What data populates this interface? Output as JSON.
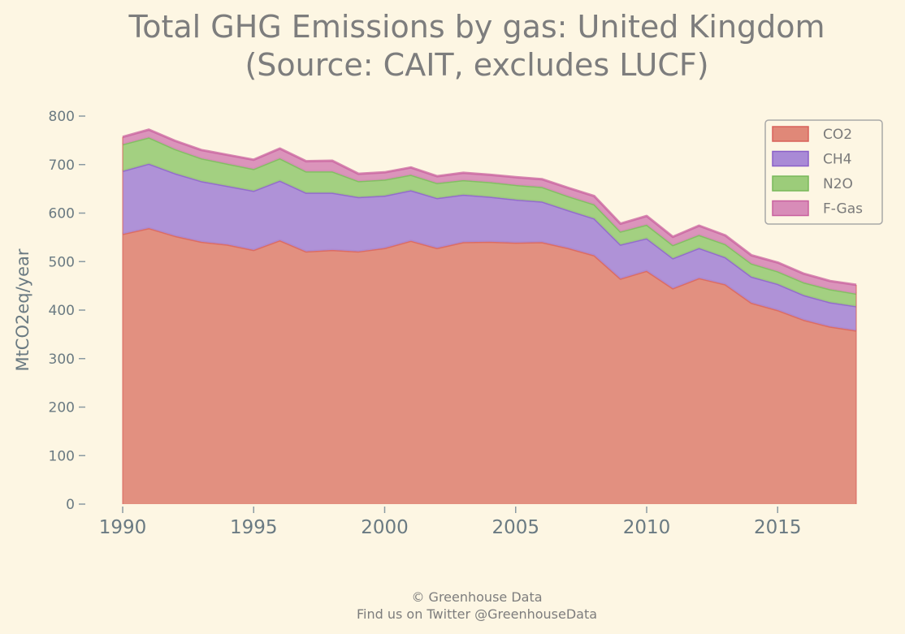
{
  "chart_data": {
    "type": "area",
    "stacked": true,
    "title": [
      "Total GHG Emissions by gas: United Kingdom",
      "(Source: CAIT, excludes LUCF)"
    ],
    "xlabel": "",
    "ylabel": "MtCO2eq/year",
    "x": [
      1990,
      1991,
      1992,
      1993,
      1994,
      1995,
      1996,
      1997,
      1998,
      1999,
      2000,
      2001,
      2002,
      2003,
      2004,
      2005,
      2006,
      2007,
      2008,
      2009,
      2010,
      2011,
      2012,
      2013,
      2014,
      2015,
      2016,
      2017,
      2018
    ],
    "xticks": [
      1990,
      1995,
      2000,
      2005,
      2010,
      2015
    ],
    "xtick_labels": [
      "1990",
      "1995",
      "2000",
      "2005",
      "2010",
      "2015"
    ],
    "xlim": [
      1990,
      2018
    ],
    "ylim": [
      0,
      800
    ],
    "yticks": [
      0,
      100,
      200,
      300,
      400,
      500,
      600,
      700,
      800
    ],
    "ytick_labels": [
      "0",
      "100",
      "200",
      "300",
      "400",
      "500",
      "600",
      "700",
      "800"
    ],
    "grid": false,
    "legend_position": "top-right",
    "series": [
      {
        "name": "CO2",
        "color": "#e08878",
        "edge": "#d9605a",
        "values": [
          557,
          569,
          553,
          541,
          535,
          524,
          544,
          521,
          524,
          521,
          528,
          543,
          528,
          540,
          541,
          539,
          540,
          528,
          513,
          465,
          481,
          445,
          466,
          453,
          415,
          400,
          380,
          366,
          358
        ]
      },
      {
        "name": "CH4",
        "color": "#a98ad6",
        "edge": "#8a5fc8",
        "values": [
          130,
          133,
          129,
          125,
          121,
          122,
          123,
          121,
          118,
          112,
          108,
          104,
          103,
          98,
          93,
          89,
          84,
          78,
          76,
          70,
          67,
          62,
          62,
          56,
          54,
          54,
          51,
          50,
          50
        ]
      },
      {
        "name": "N2O",
        "color": "#9ccc7a",
        "edge": "#78b85a",
        "values": [
          55,
          54,
          50,
          47,
          46,
          45,
          46,
          44,
          44,
          33,
          33,
          32,
          31,
          30,
          30,
          30,
          30,
          29,
          29,
          27,
          28,
          27,
          27,
          27,
          27,
          26,
          26,
          27,
          26
        ]
      },
      {
        "name": "F-Gas",
        "color": "#d88cb8",
        "edge": "#c8609e",
        "values": [
          15,
          16,
          17,
          17,
          18,
          19,
          20,
          21,
          22,
          15,
          15,
          15,
          14,
          15,
          15,
          16,
          16,
          17,
          17,
          16,
          18,
          17,
          19,
          18,
          17,
          18,
          18,
          17,
          18
        ]
      }
    ]
  },
  "footer": {
    "line1": "© Greenhouse Data",
    "line2": "Find us on Twitter @GreenhouseData"
  }
}
